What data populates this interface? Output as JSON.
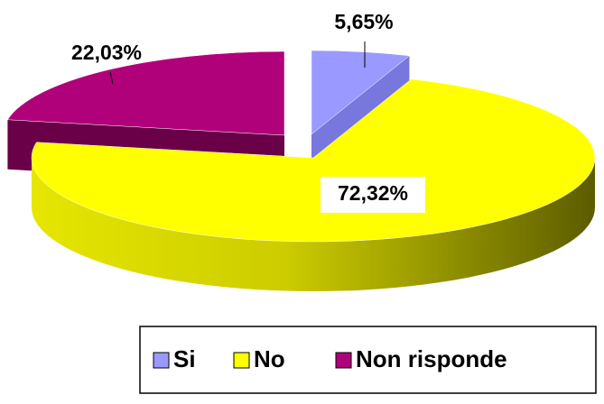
{
  "chart_data": {
    "type": "pie3d",
    "categories": [
      "Si",
      "No",
      "Non risponde"
    ],
    "values": [
      5.65,
      72.32,
      22.03
    ],
    "value_labels": [
      "5,65%",
      "72,32%",
      "22,03%"
    ],
    "colors": [
      "#9999ff",
      "#ffff00",
      "#b0007a"
    ],
    "legend": "bottom"
  }
}
